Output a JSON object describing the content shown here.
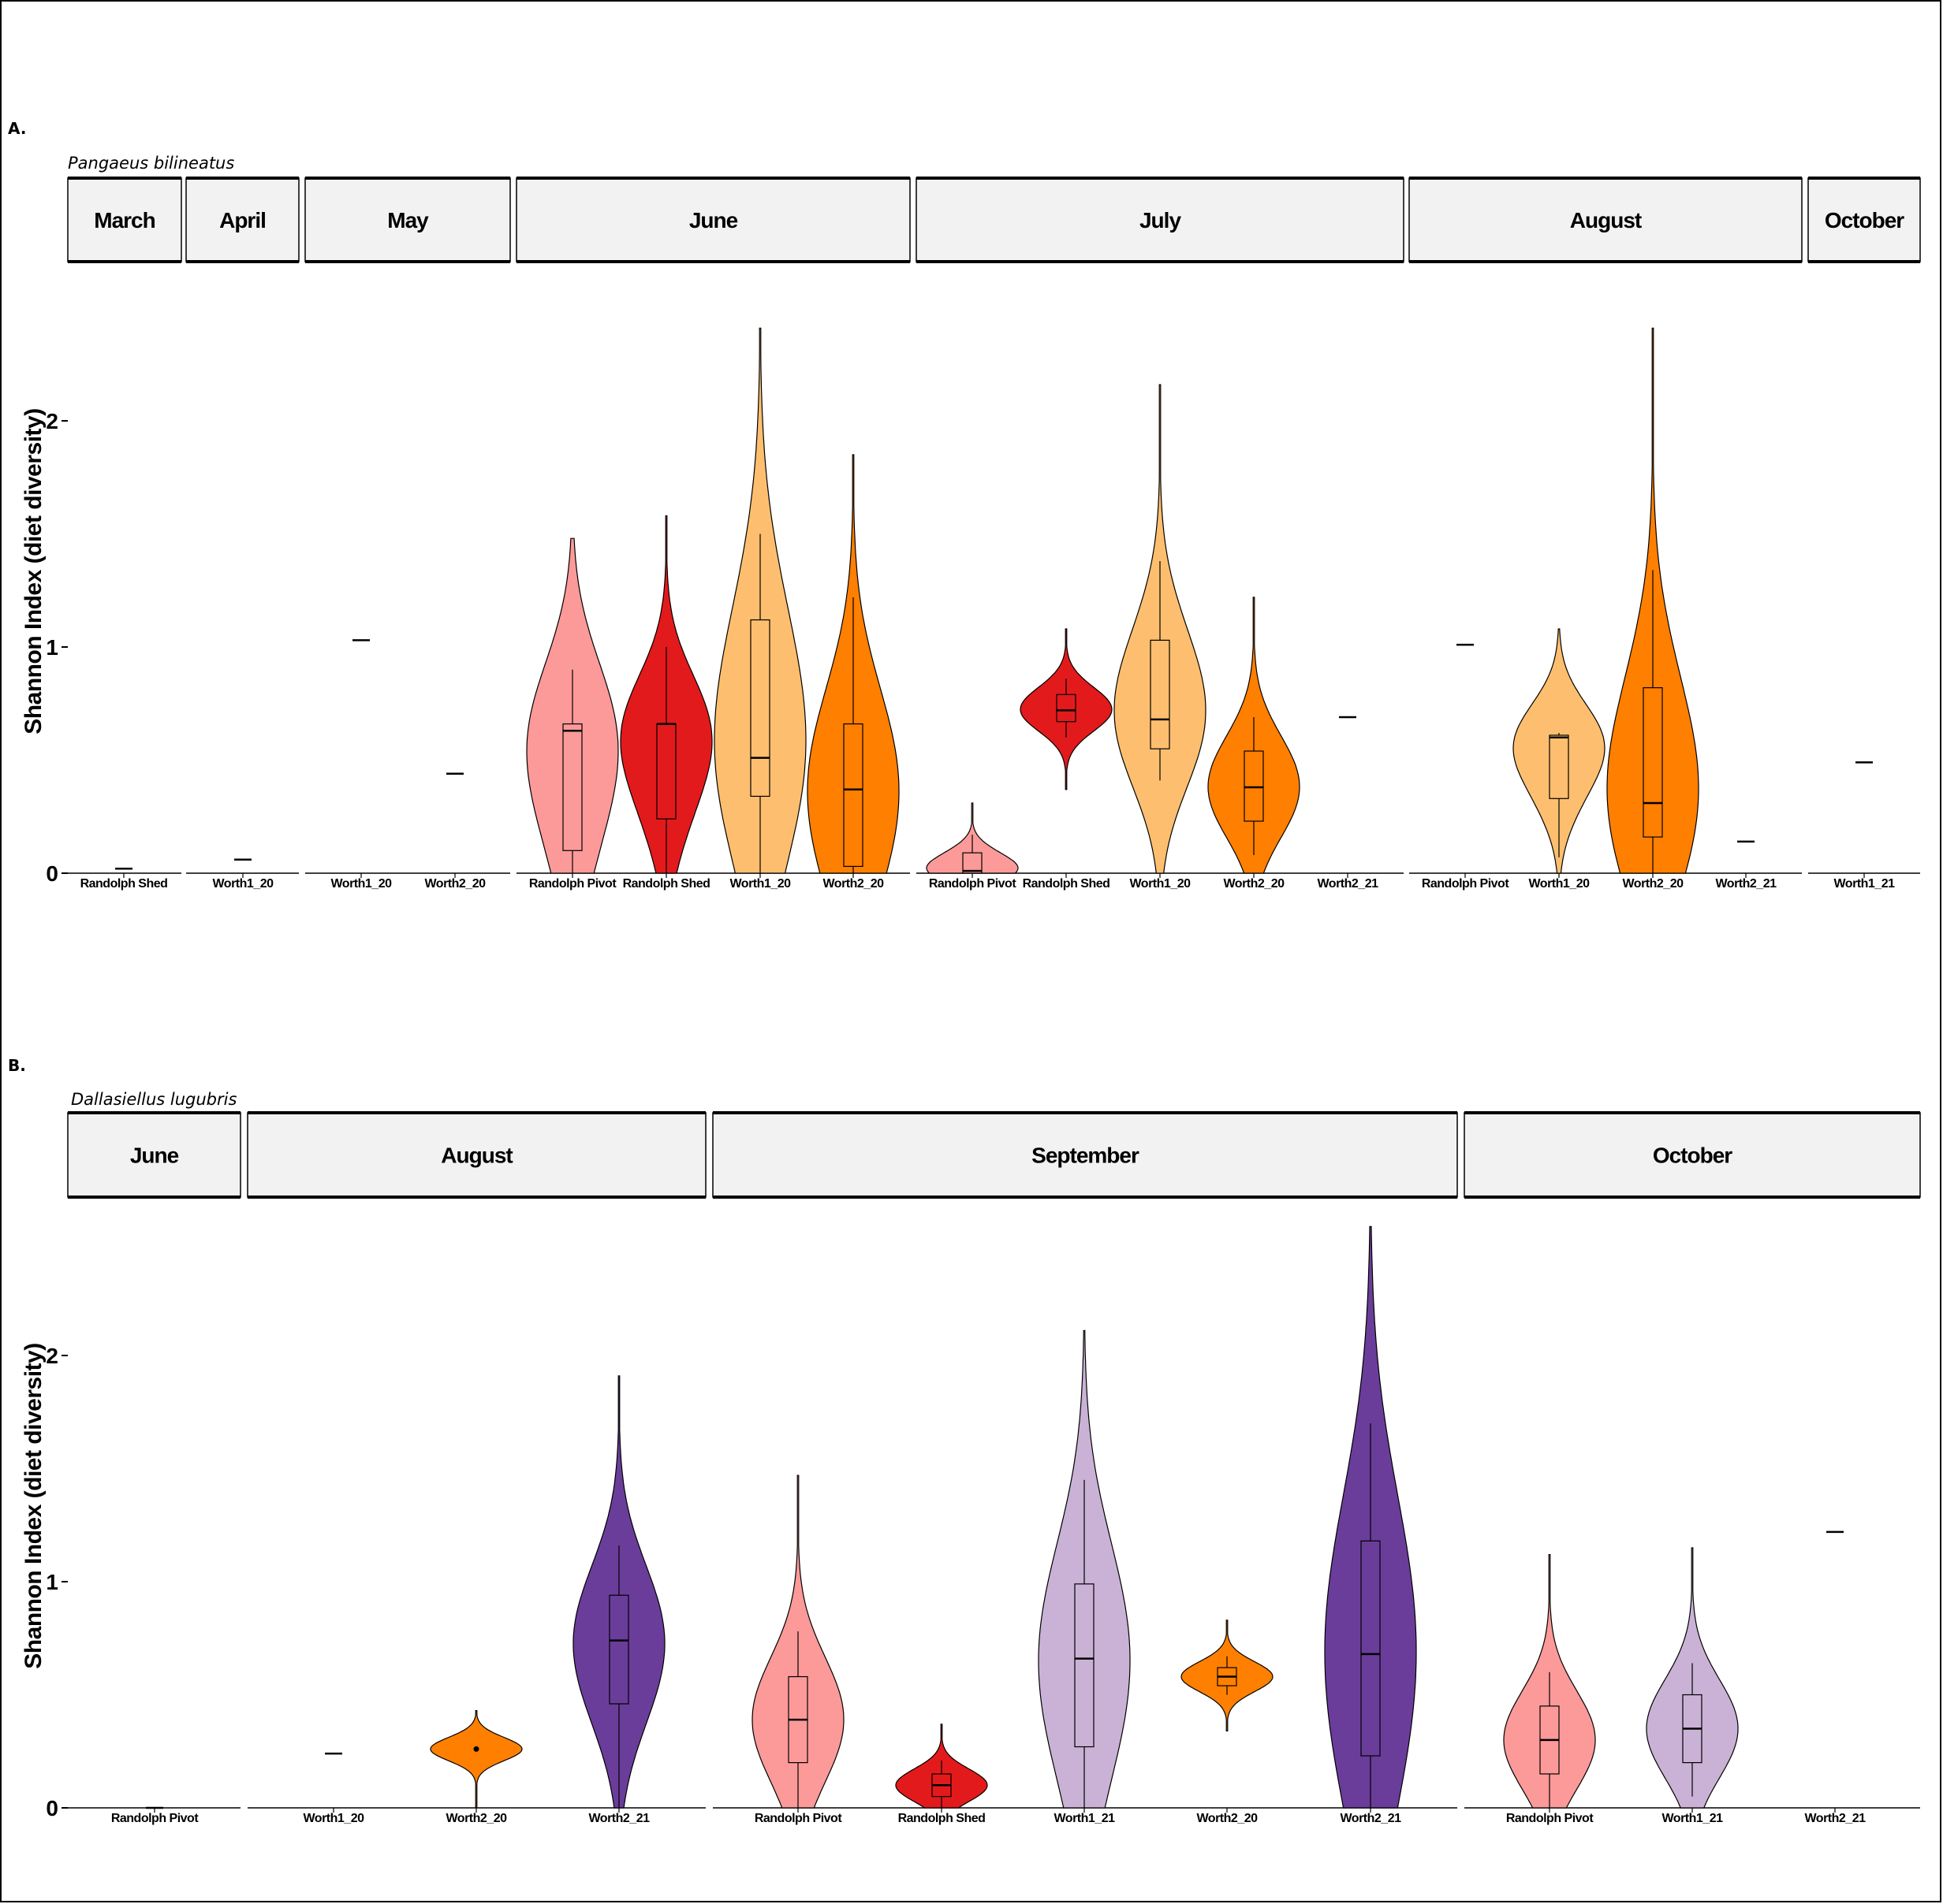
{
  "chart_data": [
    {
      "type": "violin",
      "panel_label": "A.",
      "species": "Pangaeus bilineatus",
      "ylabel": "Shannon Index (diet diversity)",
      "ylim": [
        0,
        2.6
      ],
      "yticks": [
        0,
        1,
        2
      ],
      "colors": {
        "Randolph Pivot": "#fb9a99",
        "Randolph Shed": "#e31a1c",
        "Worth1_20": "#fdbf6f",
        "Worth2_20": "#ff7f00",
        "Worth2_21": "#6a3d9a",
        "Worth1_21": "#cab2d6"
      },
      "facets": [
        {
          "month": "March",
          "groups": [
            {
              "site": "Randolph Shed",
              "median": 0.02,
              "single": true
            }
          ]
        },
        {
          "month": "April",
          "groups": [
            {
              "site": "Worth1_20",
              "median": 0.06,
              "single": true
            }
          ]
        },
        {
          "month": "May",
          "groups": [
            {
              "site": "Worth1_20",
              "median": 1.03,
              "single": true
            },
            {
              "site": "Worth2_20",
              "median": 0.44,
              "single": true
            }
          ]
        },
        {
          "month": "June",
          "groups": [
            {
              "site": "Randolph Pivot",
              "min": 0,
              "max": 1.48,
              "q1": 0.1,
              "median": 0.63,
              "q3": 0.66,
              "wlo": 0,
              "whi": 0.9
            },
            {
              "site": "Randolph Shed",
              "min": 0,
              "max": 1.58,
              "q1": 0.24,
              "median": 0.66,
              "q3": 0.66,
              "wlo": 0,
              "whi": 1.0
            },
            {
              "site": "Worth1_20",
              "min": 0,
              "max": 2.41,
              "q1": 0.34,
              "median": 0.51,
              "q3": 1.12,
              "wlo": 0,
              "whi": 1.5
            },
            {
              "site": "Worth2_20",
              "min": 0,
              "max": 1.85,
              "q1": 0.03,
              "median": 0.37,
              "q3": 0.66,
              "wlo": 0,
              "whi": 1.22
            }
          ]
        },
        {
          "month": "July",
          "groups": [
            {
              "site": "Randolph Pivot",
              "min": 0,
              "max": 0.31,
              "q1": 0,
              "median": 0.01,
              "q3": 0.09,
              "wlo": 0,
              "whi": 0.17
            },
            {
              "site": "Randolph Shed",
              "min": 0.37,
              "max": 1.08,
              "q1": 0.67,
              "median": 0.72,
              "q3": 0.79,
              "wlo": 0.6,
              "whi": 0.86
            },
            {
              "site": "Worth1_20",
              "min": 0,
              "max": 2.16,
              "q1": 0.55,
              "median": 0.68,
              "q3": 1.03,
              "wlo": 0.41,
              "whi": 1.38
            },
            {
              "site": "Worth2_20",
              "min": 0,
              "max": 1.22,
              "q1": 0.23,
              "median": 0.38,
              "q3": 0.54,
              "wlo": 0.08,
              "whi": 0.69
            },
            {
              "site": "Worth2_21",
              "median": 0.69,
              "single": true
            }
          ]
        },
        {
          "month": "August",
          "groups": [
            {
              "site": "Randolph Pivot",
              "median": 1.01,
              "single": true
            },
            {
              "site": "Worth1_20",
              "min": 0,
              "max": 1.08,
              "q1": 0.33,
              "median": 0.6,
              "q3": 0.61,
              "wlo": 0.07,
              "whi": 0.62
            },
            {
              "site": "Worth2_20",
              "min": 0,
              "max": 2.41,
              "q1": 0.16,
              "median": 0.31,
              "q3": 0.82,
              "wlo": 0,
              "whi": 1.34
            },
            {
              "site": "Worth2_21",
              "median": 0.14,
              "single": true
            }
          ]
        },
        {
          "month": "October",
          "groups": [
            {
              "site": "Worth1_21",
              "median": 0.49,
              "single": true
            }
          ]
        }
      ]
    },
    {
      "type": "violin",
      "panel_label": "B.",
      "species": "Dallasiellus lugubris",
      "ylabel": "Shannon Index (diet diversity)",
      "ylim": [
        0,
        2.6
      ],
      "yticks": [
        0,
        1,
        2
      ],
      "facets": [
        {
          "month": "June",
          "groups": [
            {
              "site": "Randolph Pivot",
              "median": 0.0,
              "single": true
            }
          ]
        },
        {
          "month": "August",
          "groups": [
            {
              "site": "Worth1_20",
              "median": 0.24,
              "single": true
            },
            {
              "site": "Worth2_20",
              "min": 0,
              "max": 0.43,
              "q1": 0.26,
              "median": 0.26,
              "q3": 0.26,
              "wlo": 0.26,
              "whi": 0.26
            },
            {
              "site": "Worth2_21",
              "min": 0,
              "max": 1.91,
              "q1": 0.46,
              "median": 0.74,
              "q3": 0.94,
              "wlo": 0,
              "whi": 1.16
            }
          ]
        },
        {
          "month": "September",
          "groups": [
            {
              "site": "Randolph Pivot",
              "min": 0,
              "max": 1.47,
              "q1": 0.2,
              "median": 0.39,
              "q3": 0.58,
              "wlo": 0,
              "whi": 0.78
            },
            {
              "site": "Randolph Shed",
              "min": 0,
              "max": 0.37,
              "q1": 0.05,
              "median": 0.1,
              "q3": 0.15,
              "wlo": 0,
              "whi": 0.21
            },
            {
              "site": "Worth1_21",
              "min": 0,
              "max": 2.11,
              "q1": 0.27,
              "median": 0.66,
              "q3": 0.99,
              "wlo": 0,
              "whi": 1.45
            },
            {
              "site": "Worth2_20",
              "min": 0.34,
              "max": 0.83,
              "q1": 0.54,
              "median": 0.58,
              "q3": 0.62,
              "wlo": 0.5,
              "whi": 0.67
            },
            {
              "site": "Worth2_21",
              "min": 0,
              "max": 2.57,
              "q1": 0.23,
              "median": 0.68,
              "q3": 1.18,
              "wlo": 0,
              "whi": 1.7
            }
          ]
        },
        {
          "month": "October",
          "groups": [
            {
              "site": "Randolph Pivot",
              "min": 0,
              "max": 1.12,
              "q1": 0.15,
              "median": 0.3,
              "q3": 0.45,
              "wlo": 0,
              "whi": 0.6
            },
            {
              "site": "Worth1_21",
              "min": 0,
              "max": 1.15,
              "q1": 0.2,
              "median": 0.35,
              "q3": 0.5,
              "wlo": 0.05,
              "whi": 0.64
            },
            {
              "site": "Worth2_21",
              "median": 1.22,
              "single": true
            }
          ]
        }
      ]
    }
  ]
}
